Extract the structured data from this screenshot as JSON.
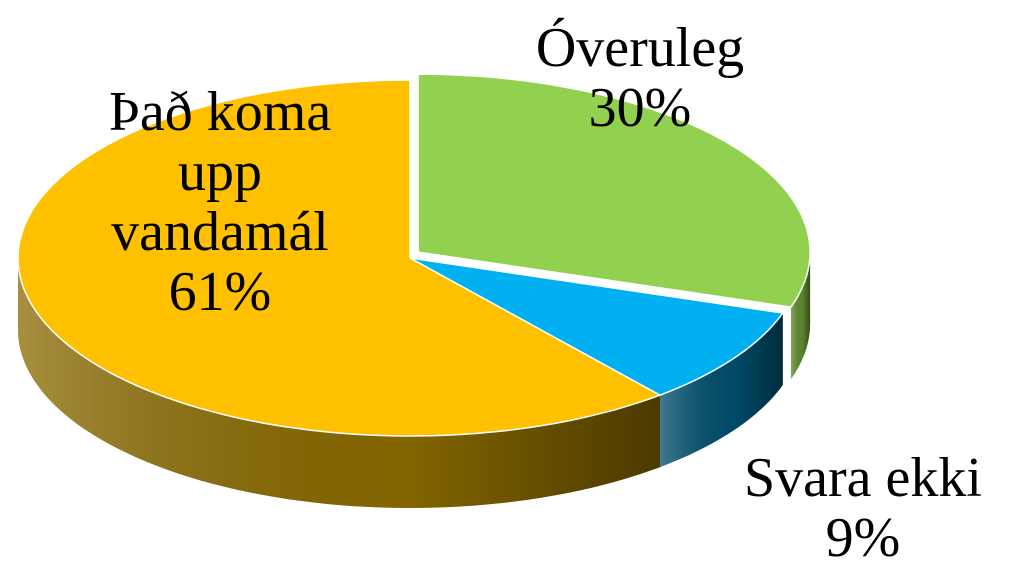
{
  "chart_data": {
    "type": "pie",
    "categories": [
      "Óveruleg",
      "Svara ekki",
      "Það koma upp vandamál"
    ],
    "values": [
      30,
      9,
      61
    ],
    "value_labels": [
      "30%",
      "9%",
      "61%"
    ],
    "colors": [
      "#92d050",
      "#00b0f0",
      "#ffc000"
    ],
    "side_colors": [
      "#5f8a2e",
      "#004f6e",
      "#8a6a00"
    ]
  }
}
